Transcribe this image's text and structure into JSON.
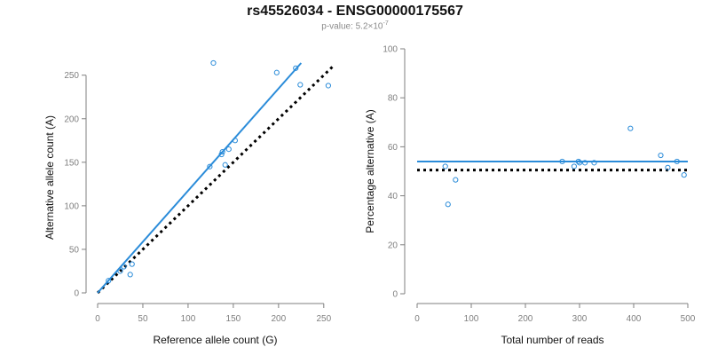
{
  "header": {
    "title": "rs45526034 - ENSG00000175567",
    "pvalue_prefix": "p-value: 5.2×10",
    "pvalue_exp": "-7"
  },
  "colors": {
    "fit": "#2b8cd9",
    "points": "#2b8cd9",
    "reference": "#000000",
    "axis": "#7f7f7f",
    "tick_text": "#7f7f7f"
  },
  "chart_data": [
    {
      "type": "scatter",
      "title": "",
      "xlabel": "Reference allele count (G)",
      "ylabel": "Alternative allele count (A)",
      "xlim": [
        0,
        260
      ],
      "ylim": [
        0,
        265
      ],
      "xticks": [
        0,
        50,
        100,
        150,
        200,
        250
      ],
      "yticks": [
        0,
        50,
        100,
        150,
        200,
        250
      ],
      "grid": false,
      "series": [
        {
          "x": [
            12,
            25,
            29,
            36,
            38,
            124,
            137,
            138,
            141,
            145,
            152,
            198,
            219,
            224,
            255,
            128
          ],
          "y": [
            14,
            25,
            30,
            21,
            33,
            145,
            159,
            162,
            147,
            165,
            175,
            253,
            258,
            239,
            238,
            264
          ]
        }
      ],
      "fit_line": {
        "x": [
          0,
          225
        ],
        "y": [
          0,
          264
        ]
      },
      "reference_line": {
        "x": [
          0,
          262
        ],
        "y": [
          0,
          262
        ]
      }
    },
    {
      "type": "scatter",
      "title": "",
      "xlabel": "Total number of reads",
      "ylabel": "Percentage alternative (A)",
      "xlim": [
        0,
        500
      ],
      "ylim": [
        0,
        100
      ],
      "xticks": [
        0,
        100,
        200,
        300,
        400,
        500
      ],
      "yticks": [
        0,
        20,
        40,
        60,
        80,
        100
      ],
      "grid": false,
      "series": [
        {
          "x": [
            52,
            57,
            71,
            268,
            290,
            298,
            300,
            310,
            327,
            394,
            450,
            463,
            480,
            493
          ],
          "y": [
            52,
            36.5,
            46.5,
            54,
            52,
            54,
            53.5,
            53.5,
            53.5,
            67.5,
            56.5,
            51.5,
            54,
            48.5
          ]
        }
      ],
      "fit_line": {
        "x": [
          0,
          500
        ],
        "y": [
          54,
          54
        ]
      },
      "reference_line": {
        "x": [
          0,
          500
        ],
        "y": [
          50.5,
          50.5
        ]
      }
    }
  ]
}
